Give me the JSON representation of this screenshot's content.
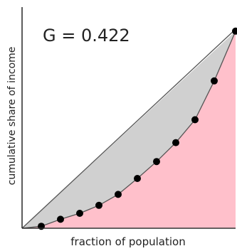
{
  "chart_data": {
    "type": "area",
    "title": "",
    "annotation": "G = 0.422",
    "xlabel": "fraction of population",
    "ylabel": "cumulative share of income",
    "xlim": [
      0,
      1
    ],
    "ylim": [
      0,
      1
    ],
    "grid": false,
    "legend": "none",
    "series": [
      {
        "name": "",
        "x": [
          0.09,
          0.18,
          0.27,
          0.36,
          0.45,
          0.54,
          0.63,
          0.72,
          0.81,
          0.9,
          1.0
        ],
        "y": [
          0.01,
          0.045,
          0.075,
          0.115,
          0.17,
          0.25,
          0.335,
          0.43,
          0.545,
          0.74,
          0.99
        ]
      }
    ],
    "equality_line": {
      "x": [
        0,
        1
      ],
      "y": [
        0,
        1
      ]
    },
    "colors": {
      "gap_fill": "#d0d0d0",
      "area_fill": "#ffc0cb",
      "curve": "#555555",
      "points": "#000000",
      "axis": "#333333"
    }
  }
}
